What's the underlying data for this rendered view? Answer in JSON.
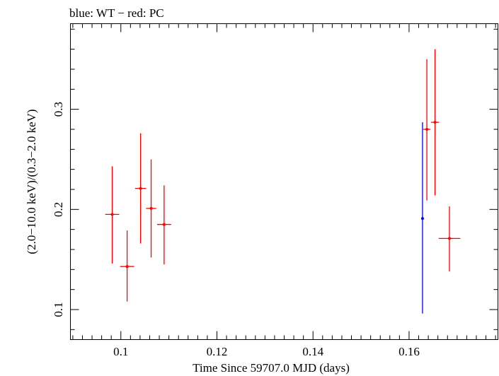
{
  "chart_data": {
    "type": "scatter",
    "title": "blue: WT − red: PC",
    "xlabel": "Time Since 59707.0 MJD (days)",
    "ylabel": "(2.0−10.0 keV)/(0.3−2.0 keV)",
    "xlim": [
      0.0895,
      0.1785
    ],
    "ylim": [
      0.07,
      0.3855
    ],
    "x_ticks": [
      {
        "value": 0.1,
        "label": "0.1"
      },
      {
        "value": 0.12,
        "label": "0.12"
      },
      {
        "value": 0.14,
        "label": "0.14"
      },
      {
        "value": 0.16,
        "label": "0.16"
      }
    ],
    "y_ticks": [
      {
        "value": 0.1,
        "label": "0.1"
      },
      {
        "value": 0.2,
        "label": "0.2"
      },
      {
        "value": 0.3,
        "label": "0.3"
      }
    ],
    "series": [
      {
        "name": "WT",
        "color": "#0000ff",
        "points": [
          {
            "x": 0.1628,
            "xerr": 0.0,
            "y": 0.191,
            "y_low": 0.096,
            "y_high": 0.287
          }
        ]
      },
      {
        "name": "PC",
        "color": "#ff0000",
        "points": [
          {
            "x": 0.0982,
            "xerr": 0.00145,
            "y": 0.195,
            "y_low": 0.146,
            "y_high": 0.243
          },
          {
            "x": 0.1013,
            "xerr": 0.00145,
            "y": 0.143,
            "y_low": 0.108,
            "y_high": 0.179
          },
          {
            "x": 0.1041,
            "xerr": 0.00115,
            "y": 0.221,
            "y_low": 0.166,
            "y_high": 0.276
          },
          {
            "x": 0.1063,
            "xerr": 0.00105,
            "y": 0.201,
            "y_low": 0.152,
            "y_high": 0.25
          },
          {
            "x": 0.109,
            "xerr": 0.00145,
            "y": 0.185,
            "y_low": 0.145,
            "y_high": 0.224
          },
          {
            "x": 0.1637,
            "xerr": 0.00075,
            "y": 0.28,
            "y_low": 0.209,
            "y_high": 0.35
          },
          {
            "x": 0.1654,
            "xerr": 0.00085,
            "y": 0.287,
            "y_low": 0.214,
            "y_high": 0.36
          },
          {
            "x": 0.1684,
            "xerr": 0.00225,
            "y": 0.171,
            "y_low": 0.138,
            "y_high": 0.203
          }
        ]
      }
    ],
    "grid": false,
    "legend": "none"
  }
}
